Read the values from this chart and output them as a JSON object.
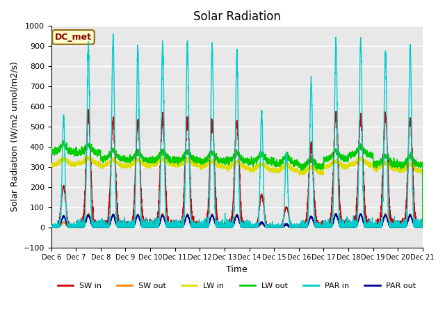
{
  "title": "Solar Radiation",
  "xlabel": "Time",
  "ylabel": "Solar Radiation (W/m2 umol/m2/s)",
  "ylim": [
    -100,
    1000
  ],
  "annotation": "DC_met",
  "bg_color": "#e8e8e8",
  "grid_color": "white",
  "series": {
    "SW_in": {
      "color": "#cc0000",
      "lw": 1.0
    },
    "SW_out": {
      "color": "#ff8800",
      "lw": 1.0
    },
    "LW_in": {
      "color": "#dddd00",
      "lw": 1.0
    },
    "LW_out": {
      "color": "#00cc00",
      "lw": 1.0
    },
    "PAR_in": {
      "color": "#00cccc",
      "lw": 1.0
    },
    "PAR_out": {
      "color": "#000099",
      "lw": 1.0
    }
  },
  "tick_labels": [
    "Dec 6",
    "Dec 7",
    "Dec 8",
    "Dec 9",
    "Dec 10",
    "Dec 11",
    "Dec 12",
    "Dec 13",
    "Dec 14",
    "Dec 15",
    "Dec 16",
    "Dec 17",
    "Dec 18",
    "Dec 19",
    "Dec 20",
    "Dec 21"
  ],
  "legend_labels": [
    "SW in",
    "SW out",
    "LW in",
    "LW out",
    "PAR in",
    "PAR out"
  ],
  "legend_colors": [
    "#cc0000",
    "#ff8800",
    "#dddd00",
    "#00cc00",
    "#00cccc",
    "#000099"
  ],
  "sw_in_peaks": [
    200,
    560,
    530,
    530,
    545,
    535,
    525,
    520,
    160,
    100,
    410,
    560,
    550,
    545,
    540
  ],
  "par_in_peaks": [
    560,
    890,
    940,
    900,
    910,
    905,
    900,
    860,
    570,
    375,
    730,
    920,
    930,
    880,
    895
  ],
  "lw_out_bases": [
    375,
    370,
    340,
    335,
    335,
    335,
    330,
    330,
    325,
    315,
    300,
    340,
    360,
    315,
    310
  ],
  "lw_in_bases": [
    310,
    315,
    305,
    305,
    310,
    308,
    300,
    295,
    285,
    280,
    270,
    300,
    310,
    290,
    280
  ],
  "par_out_peaks": [
    55,
    60,
    60,
    60,
    60,
    60,
    60,
    60,
    25,
    15,
    55,
    65,
    65,
    60,
    60
  ]
}
